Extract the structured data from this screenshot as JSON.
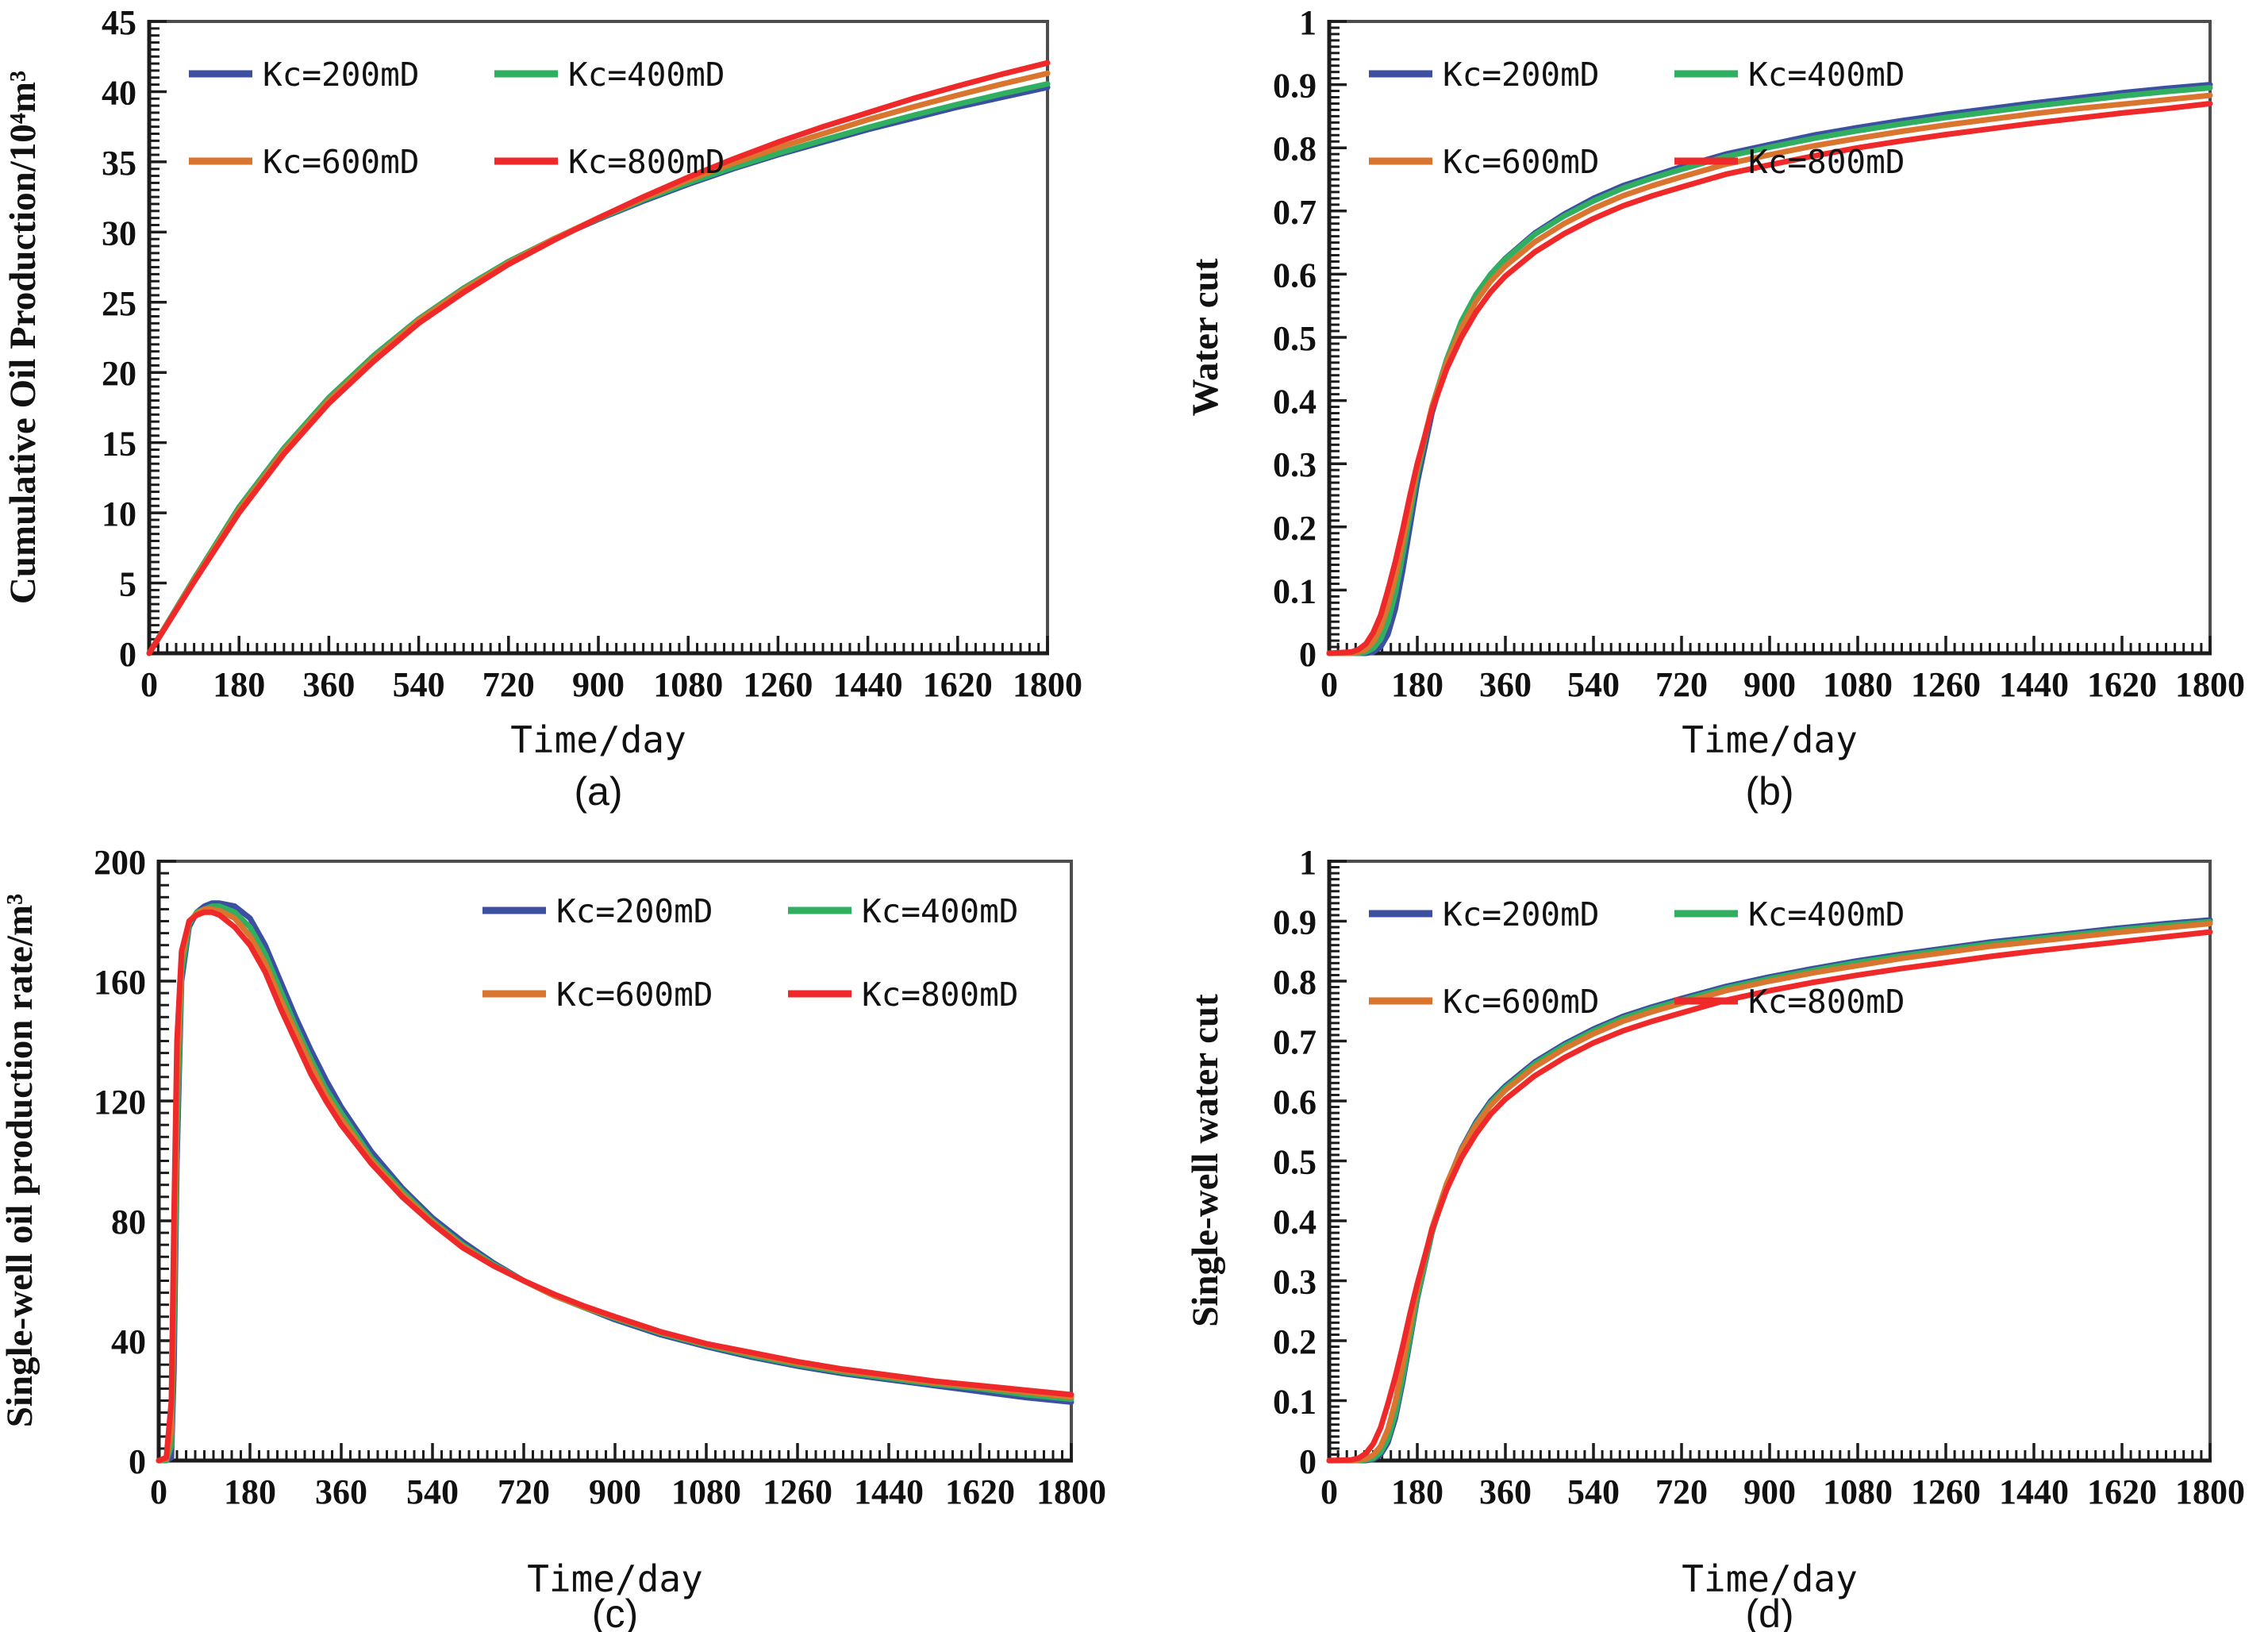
{
  "figure": {
    "background": "#ffffff",
    "accent_colors": [
      "#3D4FA1",
      "#2FAF5F",
      "#D9752F",
      "#EF2929"
    ]
  },
  "chart_data": [
    {
      "id": "a",
      "type": "line",
      "panel_letter": "(a)",
      "x_label": "Time/day",
      "y_label": "Cumulative Oil Production/10⁴m³",
      "xlim": [
        0,
        1800
      ],
      "ylim": [
        0,
        45
      ],
      "x_ticks": [
        0,
        180,
        360,
        540,
        720,
        900,
        1080,
        1260,
        1440,
        1620,
        1800
      ],
      "x_tick_labels": [
        "0",
        "180",
        "360",
        "540",
        "720",
        "900",
        "1080",
        "1260",
        "1440",
        "1620",
        "1800"
      ],
      "x_minor_step": 18,
      "y_ticks": [
        0,
        5,
        10,
        15,
        20,
        25,
        30,
        35,
        40,
        45
      ],
      "y_tick_labels": [
        "0",
        "5",
        "10",
        "15",
        "20",
        "25",
        "30",
        "35",
        "40",
        "45"
      ],
      "y_minor_step": 0.5,
      "grid": false,
      "legend_position": "top-left",
      "x": [
        0,
        90,
        180,
        270,
        360,
        450,
        540,
        630,
        720,
        810,
        900,
        990,
        1080,
        1170,
        1260,
        1350,
        1440,
        1530,
        1620,
        1710,
        1800
      ],
      "series": [
        {
          "name": "Kc=200mD",
          "color": "#3D4FA1",
          "values": [
            0,
            5.3,
            10.4,
            14.6,
            18.2,
            21.2,
            23.8,
            26.0,
            27.9,
            29.5,
            30.9,
            32.2,
            33.4,
            34.5,
            35.5,
            36.4,
            37.3,
            38.1,
            38.9,
            39.6,
            40.3
          ]
        },
        {
          "name": "Kc=400mD",
          "color": "#2FAF5F",
          "values": [
            0,
            5.3,
            10.4,
            14.6,
            18.2,
            21.2,
            23.8,
            26.0,
            27.9,
            29.5,
            30.95,
            32.3,
            33.5,
            34.6,
            35.6,
            36.55,
            37.45,
            38.3,
            39.1,
            39.85,
            40.55
          ]
        },
        {
          "name": "Kc=600mD",
          "color": "#D9752F",
          "values": [
            0,
            5.2,
            10.2,
            14.4,
            18.0,
            21.0,
            23.7,
            25.9,
            27.8,
            29.5,
            31.0,
            32.4,
            33.7,
            34.9,
            36.0,
            37.0,
            38.0,
            38.9,
            39.75,
            40.55,
            41.3
          ]
        },
        {
          "name": "Kc=800mD",
          "color": "#EF2929",
          "values": [
            0,
            5.1,
            10.0,
            14.2,
            17.8,
            20.8,
            23.5,
            25.7,
            27.7,
            29.4,
            31.0,
            32.5,
            33.9,
            35.2,
            36.4,
            37.5,
            38.5,
            39.5,
            40.4,
            41.25,
            42.05
          ]
        }
      ]
    },
    {
      "id": "b",
      "type": "line",
      "panel_letter": "(b)",
      "x_label": "Time/day",
      "y_label": "Water cut",
      "xlim": [
        0,
        1800
      ],
      "ylim": [
        0,
        1
      ],
      "x_ticks": [
        0,
        180,
        360,
        540,
        720,
        900,
        1080,
        1260,
        1440,
        1620,
        1800
      ],
      "x_tick_labels": [
        "0",
        "180",
        "360",
        "540",
        "720",
        "900",
        "1080",
        "1260",
        "1440",
        "1620",
        "1800"
      ],
      "x_minor_step": 18,
      "y_ticks": [
        0,
        0.1,
        0.2,
        0.3,
        0.4,
        0.5,
        0.6,
        0.7,
        0.8,
        0.9,
        1
      ],
      "y_tick_labels": [
        "0",
        "0.1",
        "0.2",
        "0.3",
        "0.4",
        "0.5",
        "0.6",
        "0.7",
        "0.8",
        "0.9",
        "1"
      ],
      "y_minor_step": 0.01,
      "grid": false,
      "legend_position": "top-left",
      "x": [
        0,
        45,
        60,
        75,
        90,
        105,
        120,
        135,
        150,
        165,
        180,
        210,
        240,
        270,
        300,
        330,
        360,
        420,
        480,
        540,
        600,
        660,
        720,
        810,
        900,
        990,
        1080,
        1170,
        1260,
        1350,
        1440,
        1530,
        1620,
        1710,
        1800
      ],
      "series": [
        {
          "name": "Kc=200mD",
          "color": "#3D4FA1",
          "values": [
            0,
            0,
            0,
            0,
            0.002,
            0.01,
            0.03,
            0.07,
            0.13,
            0.2,
            0.27,
            0.38,
            0.46,
            0.52,
            0.565,
            0.6,
            0.625,
            0.665,
            0.695,
            0.72,
            0.74,
            0.755,
            0.77,
            0.79,
            0.805,
            0.82,
            0.832,
            0.843,
            0.853,
            0.862,
            0.871,
            0.879,
            0.887,
            0.894,
            0.9
          ]
        },
        {
          "name": "Kc=400mD",
          "color": "#2FAF5F",
          "values": [
            0,
            0,
            0,
            0.002,
            0.008,
            0.022,
            0.05,
            0.095,
            0.155,
            0.22,
            0.285,
            0.39,
            0.465,
            0.525,
            0.568,
            0.6,
            0.624,
            0.663,
            0.692,
            0.716,
            0.736,
            0.752,
            0.766,
            0.786,
            0.801,
            0.815,
            0.827,
            0.838,
            0.848,
            0.857,
            0.866,
            0.874,
            0.882,
            0.889,
            0.895
          ]
        },
        {
          "name": "Kc=600mD",
          "color": "#D9752F",
          "values": [
            0,
            0,
            0.002,
            0.006,
            0.018,
            0.04,
            0.075,
            0.12,
            0.175,
            0.235,
            0.295,
            0.39,
            0.46,
            0.515,
            0.557,
            0.589,
            0.613,
            0.651,
            0.68,
            0.704,
            0.724,
            0.74,
            0.754,
            0.774,
            0.789,
            0.803,
            0.815,
            0.826,
            0.836,
            0.845,
            0.854,
            0.862,
            0.869,
            0.876,
            0.883
          ]
        },
        {
          "name": "Kc=800mD",
          "color": "#EF2929",
          "values": [
            0,
            0.002,
            0.006,
            0.015,
            0.033,
            0.06,
            0.1,
            0.145,
            0.195,
            0.25,
            0.3,
            0.385,
            0.45,
            0.5,
            0.54,
            0.572,
            0.597,
            0.635,
            0.664,
            0.688,
            0.708,
            0.724,
            0.738,
            0.758,
            0.773,
            0.787,
            0.8,
            0.811,
            0.821,
            0.83,
            0.839,
            0.847,
            0.855,
            0.862,
            0.87
          ]
        }
      ]
    },
    {
      "id": "c",
      "type": "line",
      "panel_letter": "(c)",
      "x_label": "Time/day",
      "y_label": "Single-well oil production rate/m³",
      "xlim": [
        0,
        1800
      ],
      "ylim": [
        0,
        200
      ],
      "x_ticks": [
        0,
        180,
        360,
        540,
        720,
        900,
        1080,
        1260,
        1440,
        1620,
        1800
      ],
      "x_tick_labels": [
        "0",
        "180",
        "360",
        "540",
        "720",
        "900",
        "1080",
        "1260",
        "1440",
        "1620",
        "1800"
      ],
      "x_minor_step": 18,
      "y_ticks": [
        0,
        40,
        80,
        120,
        160,
        200
      ],
      "y_tick_labels": [
        "0",
        "40",
        "80",
        "120",
        "160",
        "200"
      ],
      "y_minor_step": 4,
      "grid": false,
      "legend_position": "top-right",
      "x": [
        0,
        15,
        25,
        30,
        36,
        45,
        60,
        75,
        90,
        105,
        120,
        150,
        180,
        210,
        240,
        270,
        300,
        330,
        360,
        420,
        480,
        540,
        600,
        660,
        720,
        780,
        840,
        900,
        990,
        1080,
        1170,
        1260,
        1350,
        1440,
        1530,
        1620,
        1710,
        1800
      ],
      "series": [
        {
          "name": "Kc=200mD",
          "color": "#3D4FA1",
          "values": [
            0,
            0,
            1,
            30,
            100,
            160,
            178,
            183,
            185,
            186,
            186,
            185,
            181,
            172,
            160,
            148,
            137,
            127,
            118,
            103,
            91,
            81,
            73,
            66,
            60,
            55,
            51,
            47,
            42,
            38,
            34.5,
            31.5,
            29,
            27,
            25,
            23,
            21,
            19.5
          ]
        },
        {
          "name": "Kc=400mD",
          "color": "#2FAF5F",
          "values": [
            0,
            0,
            5,
            45,
            110,
            163,
            179,
            183,
            184,
            185,
            185,
            183,
            178,
            169,
            157,
            145,
            134,
            124,
            116,
            101,
            90,
            80,
            72,
            65.5,
            60,
            55,
            51,
            47.5,
            42.5,
            38.5,
            35,
            32,
            29.5,
            27.5,
            25.5,
            24,
            22,
            20.5
          ]
        },
        {
          "name": "Kc=600mD",
          "color": "#D9752F",
          "values": [
            0,
            0.5,
            10,
            60,
            125,
            167,
            180,
            182.5,
            184,
            184,
            183.5,
            181,
            175,
            166,
            154,
            143,
            132,
            122,
            114,
            100,
            89,
            79.5,
            71.5,
            65,
            60,
            55,
            51.2,
            47.8,
            42.8,
            38.8,
            35.5,
            32.5,
            30,
            28,
            26,
            24.5,
            22.8,
            21.2
          ]
        },
        {
          "name": "Kc=800mD",
          "color": "#EF2929",
          "values": [
            0,
            1,
            20,
            80,
            140,
            170,
            180,
            182,
            183,
            183,
            182,
            178,
            172,
            163,
            151,
            140,
            129,
            120,
            112,
            99,
            88,
            79,
            71,
            65,
            60,
            55.5,
            51.5,
            48,
            43,
            39,
            36,
            33,
            30.5,
            28.5,
            26.5,
            25,
            23.5,
            22
          ]
        }
      ]
    },
    {
      "id": "d",
      "type": "line",
      "panel_letter": "(d)",
      "x_label": "Time/day",
      "y_label": "Single-well water cut",
      "xlim": [
        0,
        1800
      ],
      "ylim": [
        0,
        1
      ],
      "x_ticks": [
        0,
        180,
        360,
        540,
        720,
        900,
        1080,
        1260,
        1440,
        1620,
        1800
      ],
      "x_tick_labels": [
        "0",
        "180",
        "360",
        "540",
        "720",
        "900",
        "1080",
        "1260",
        "1440",
        "1620",
        "1800"
      ],
      "x_minor_step": 18,
      "y_ticks": [
        0,
        0.1,
        0.2,
        0.3,
        0.4,
        0.5,
        0.6,
        0.7,
        0.8,
        0.9,
        1
      ],
      "y_tick_labels": [
        "0",
        "0.1",
        "0.2",
        "0.3",
        "0.4",
        "0.5",
        "0.6",
        "0.7",
        "0.8",
        "0.9",
        "1"
      ],
      "y_minor_step": 0.01,
      "grid": false,
      "legend_position": "top-left",
      "x": [
        0,
        45,
        60,
        75,
        90,
        105,
        120,
        135,
        150,
        165,
        180,
        210,
        240,
        270,
        300,
        330,
        360,
        420,
        480,
        540,
        600,
        660,
        720,
        810,
        900,
        990,
        1080,
        1170,
        1260,
        1350,
        1440,
        1530,
        1620,
        1710,
        1800
      ],
      "series": [
        {
          "name": "Kc=200mD",
          "color": "#3D4FA1",
          "values": [
            0,
            0,
            0,
            0,
            0.002,
            0.01,
            0.03,
            0.07,
            0.13,
            0.2,
            0.27,
            0.38,
            0.46,
            0.52,
            0.565,
            0.6,
            0.625,
            0.665,
            0.695,
            0.72,
            0.741,
            0.757,
            0.771,
            0.791,
            0.807,
            0.821,
            0.834,
            0.845,
            0.855,
            0.865,
            0.873,
            0.881,
            0.889,
            0.896,
            0.902
          ]
        },
        {
          "name": "Kc=400mD",
          "color": "#2FAF5F",
          "values": [
            0,
            0,
            0,
            0.001,
            0.004,
            0.014,
            0.036,
            0.078,
            0.138,
            0.206,
            0.274,
            0.381,
            0.459,
            0.518,
            0.562,
            0.597,
            0.622,
            0.662,
            0.692,
            0.717,
            0.738,
            0.754,
            0.768,
            0.788,
            0.804,
            0.818,
            0.831,
            0.842,
            0.852,
            0.862,
            0.87,
            0.878,
            0.886,
            0.893,
            0.899
          ]
        },
        {
          "name": "Kc=600mD",
          "color": "#D9752F",
          "values": [
            0,
            0,
            0.001,
            0.003,
            0.009,
            0.024,
            0.052,
            0.098,
            0.158,
            0.224,
            0.288,
            0.388,
            0.462,
            0.518,
            0.56,
            0.593,
            0.618,
            0.657,
            0.687,
            0.712,
            0.733,
            0.749,
            0.763,
            0.784,
            0.8,
            0.814,
            0.826,
            0.838,
            0.848,
            0.858,
            0.866,
            0.874,
            0.882,
            0.889,
            0.896
          ]
        },
        {
          "name": "Kc=800mD",
          "color": "#EF2929",
          "values": [
            0,
            0.001,
            0.004,
            0.012,
            0.028,
            0.055,
            0.095,
            0.14,
            0.19,
            0.245,
            0.295,
            0.385,
            0.452,
            0.505,
            0.545,
            0.578,
            0.603,
            0.642,
            0.672,
            0.697,
            0.717,
            0.733,
            0.747,
            0.768,
            0.784,
            0.798,
            0.81,
            0.821,
            0.831,
            0.841,
            0.85,
            0.858,
            0.866,
            0.874,
            0.882
          ]
        }
      ]
    }
  ]
}
